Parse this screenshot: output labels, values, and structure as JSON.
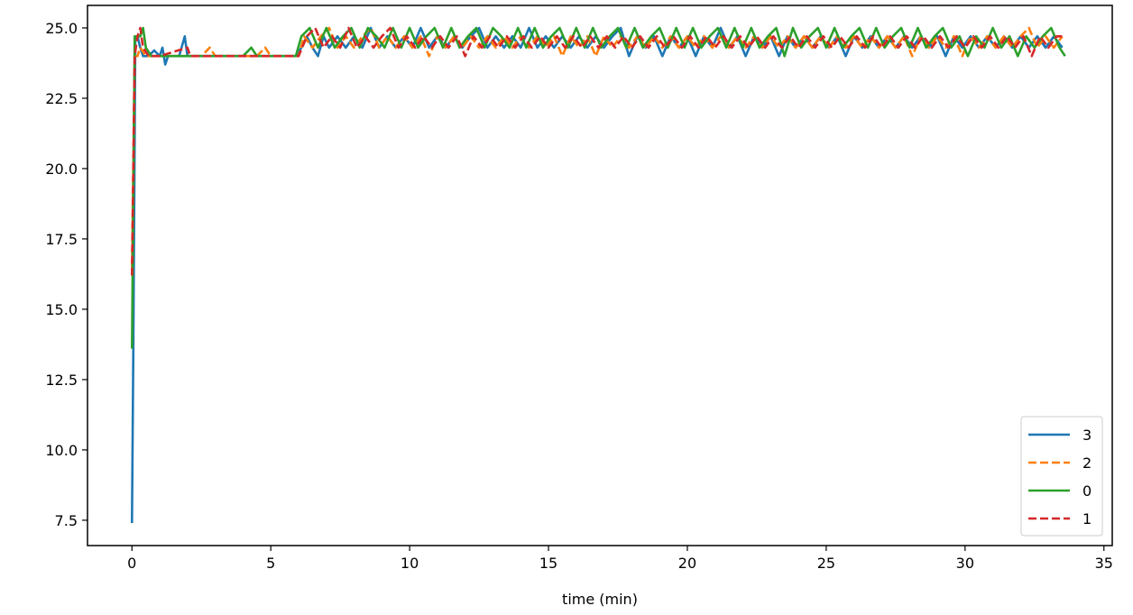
{
  "chart_data": {
    "type": "line",
    "title": "",
    "xlabel": "time (min)",
    "ylabel": "",
    "xlim": [
      -1.6,
      35.3
    ],
    "ylim": [
      6.6,
      25.8
    ],
    "xticks": [
      0,
      5,
      10,
      15,
      20,
      25,
      30,
      35
    ],
    "xtick_labels": [
      "0",
      "5",
      "10",
      "15",
      "20",
      "25",
      "30",
      "35"
    ],
    "yticks": [
      7.5,
      10.0,
      12.5,
      15.0,
      17.5,
      20.0,
      22.5,
      25.0
    ],
    "ytick_labels": [
      "7.5",
      "10.0",
      "12.5",
      "15.0",
      "17.5",
      "20.0",
      "22.5",
      "25.0"
    ],
    "grid": false,
    "legend_position": "lower-right",
    "series": [
      {
        "name": "3",
        "color": "#1f77b4",
        "dash": "solid",
        "x": [
          0.0,
          0.05,
          0.12,
          0.2,
          0.3,
          0.4,
          0.6,
          0.8,
          1.0,
          1.1,
          1.2,
          1.3,
          1.5,
          1.7,
          1.9,
          2.0,
          2.2,
          3.0,
          4.0,
          5.0,
          5.9,
          6.1,
          6.3,
          6.5,
          6.7,
          6.9,
          7.1,
          7.4,
          7.7,
          8.0,
          8.3,
          8.6,
          8.9,
          9.2,
          9.5,
          9.8,
          10.1,
          10.4,
          10.7,
          11.0,
          11.3,
          11.6,
          11.9,
          12.2,
          12.5,
          12.8,
          13.1,
          13.4,
          13.7,
          14.0,
          14.3,
          14.6,
          14.9,
          15.2,
          15.5,
          15.8,
          16.1,
          16.4,
          16.7,
          17.0,
          17.3,
          17.6,
          17.9,
          18.2,
          18.5,
          18.8,
          19.1,
          19.4,
          19.7,
          20.0,
          20.3,
          20.6,
          20.9,
          21.2,
          21.5,
          21.8,
          22.1,
          22.4,
          22.7,
          23.0,
          23.3,
          23.6,
          23.9,
          24.2,
          24.5,
          24.8,
          25.1,
          25.4,
          25.7,
          26.0,
          26.3,
          26.6,
          26.9,
          27.2,
          27.5,
          27.8,
          28.1,
          28.4,
          28.7,
          29.0,
          29.3,
          29.6,
          29.9,
          30.2,
          30.5,
          30.8,
          31.1,
          31.4,
          31.7,
          32.0,
          32.3,
          32.6,
          32.9,
          33.2,
          33.5
        ],
        "y": [
          7.4,
          13.6,
          24.7,
          24.7,
          24.3,
          24.0,
          24.0,
          24.2,
          24.0,
          24.3,
          23.7,
          24.0,
          24.0,
          24.0,
          24.7,
          24.0,
          24.0,
          24.0,
          24.0,
          24.0,
          24.0,
          24.3,
          24.7,
          24.3,
          24.0,
          24.7,
          24.3,
          24.7,
          24.3,
          24.7,
          24.3,
          25.0,
          24.3,
          24.7,
          24.3,
          24.7,
          24.3,
          25.0,
          24.3,
          24.7,
          24.3,
          24.7,
          24.3,
          24.7,
          25.0,
          24.3,
          24.7,
          24.3,
          24.7,
          24.3,
          25.0,
          24.3,
          24.7,
          24.3,
          24.7,
          24.3,
          24.7,
          24.3,
          24.7,
          24.3,
          24.7,
          25.0,
          24.0,
          24.7,
          24.3,
          24.7,
          24.0,
          24.7,
          24.3,
          24.7,
          24.0,
          24.7,
          24.3,
          25.0,
          24.3,
          24.7,
          24.0,
          24.7,
          24.3,
          24.7,
          24.0,
          24.7,
          24.3,
          24.7,
          24.3,
          24.7,
          24.3,
          24.7,
          24.0,
          24.7,
          24.3,
          24.7,
          24.3,
          24.7,
          24.3,
          24.7,
          24.3,
          24.7,
          24.3,
          24.7,
          24.0,
          24.7,
          24.3,
          24.7,
          24.3,
          24.7,
          24.3,
          24.7,
          24.3,
          24.7,
          24.3,
          24.7,
          24.3,
          24.7,
          24.3
        ]
      },
      {
        "name": "2",
        "color": "#ff7f0e",
        "dash": "dashed",
        "x": [
          0.0,
          0.1,
          0.2,
          0.3,
          0.5,
          1.0,
          1.5,
          2.0,
          2.5,
          2.8,
          3.0,
          3.5,
          4.0,
          4.5,
          4.8,
          5.0,
          5.5,
          6.0,
          6.2,
          6.5,
          6.8,
          7.1,
          7.4,
          7.7,
          8.0,
          8.3,
          8.6,
          8.9,
          9.2,
          9.5,
          9.8,
          10.1,
          10.4,
          10.7,
          11.0,
          11.3,
          11.6,
          11.9,
          12.2,
          12.5,
          12.8,
          13.1,
          13.4,
          13.7,
          14.0,
          14.3,
          14.6,
          14.9,
          15.2,
          15.5,
          15.8,
          16.1,
          16.4,
          16.7,
          17.0,
          17.3,
          17.6,
          17.9,
          18.2,
          18.5,
          18.8,
          19.1,
          19.4,
          19.7,
          20.0,
          20.3,
          20.6,
          20.9,
          21.2,
          21.5,
          21.8,
          22.1,
          22.4,
          22.7,
          23.0,
          23.3,
          23.6,
          23.9,
          24.2,
          24.5,
          24.8,
          25.1,
          25.4,
          25.7,
          26.0,
          26.3,
          26.6,
          26.9,
          27.2,
          27.5,
          27.8,
          28.1,
          28.4,
          28.7,
          29.0,
          29.3,
          29.6,
          29.9,
          30.2,
          30.5,
          30.8,
          31.1,
          31.4,
          31.7,
          32.0,
          32.3,
          32.6,
          32.9,
          33.2,
          33.5
        ],
        "y": [
          16.5,
          24.0,
          24.0,
          24.3,
          24.0,
          24.0,
          24.0,
          24.0,
          24.0,
          24.3,
          24.0,
          24.0,
          24.0,
          24.0,
          24.3,
          24.0,
          24.0,
          24.0,
          24.7,
          24.3,
          24.7,
          25.0,
          24.3,
          24.7,
          24.3,
          24.7,
          25.0,
          24.3,
          24.7,
          24.3,
          24.7,
          24.3,
          24.7,
          24.0,
          24.7,
          24.3,
          24.7,
          24.3,
          24.7,
          24.3,
          24.7,
          24.3,
          24.7,
          24.3,
          24.7,
          24.3,
          24.7,
          24.3,
          24.7,
          24.0,
          24.7,
          24.3,
          24.7,
          24.0,
          24.7,
          24.3,
          24.7,
          24.3,
          24.7,
          24.3,
          24.7,
          24.3,
          24.7,
          24.3,
          24.7,
          24.3,
          24.7,
          24.3,
          24.7,
          24.3,
          24.7,
          24.3,
          24.7,
          24.3,
          24.7,
          24.3,
          24.7,
          24.3,
          24.7,
          24.3,
          24.7,
          24.3,
          24.7,
          24.3,
          24.7,
          24.3,
          24.7,
          24.3,
          24.7,
          24.3,
          24.7,
          24.0,
          24.7,
          24.3,
          24.7,
          24.3,
          24.7,
          24.0,
          24.7,
          24.3,
          24.7,
          24.3,
          24.7,
          24.3,
          24.7,
          25.0,
          24.3,
          24.7,
          24.3,
          24.7
        ]
      },
      {
        "name": "0",
        "color": "#2ca02c",
        "dash": "solid",
        "x": [
          0.0,
          0.1,
          0.15,
          0.3,
          0.4,
          0.5,
          0.7,
          1.0,
          1.5,
          2.0,
          3.0,
          4.0,
          4.3,
          4.5,
          5.0,
          5.9,
          6.1,
          6.4,
          6.7,
          7.0,
          7.3,
          7.6,
          7.9,
          8.2,
          8.5,
          8.8,
          9.1,
          9.4,
          9.7,
          10.0,
          10.3,
          10.6,
          10.9,
          11.2,
          11.5,
          11.8,
          12.1,
          12.4,
          12.7,
          13.0,
          13.3,
          13.6,
          13.9,
          14.2,
          14.5,
          14.8,
          15.1,
          15.4,
          15.7,
          16.0,
          16.3,
          16.6,
          16.9,
          17.2,
          17.5,
          17.8,
          18.1,
          18.4,
          18.7,
          19.0,
          19.3,
          19.6,
          19.9,
          20.2,
          20.5,
          20.8,
          21.1,
          21.4,
          21.7,
          22.0,
          22.3,
          22.6,
          22.9,
          23.2,
          23.5,
          23.8,
          24.1,
          24.4,
          24.7,
          25.0,
          25.3,
          25.6,
          25.9,
          26.2,
          26.5,
          26.8,
          27.1,
          27.4,
          27.7,
          28.0,
          28.3,
          28.6,
          28.9,
          29.2,
          29.5,
          29.8,
          30.1,
          30.4,
          30.7,
          31.0,
          31.3,
          31.6,
          31.9,
          32.2,
          32.5,
          32.8,
          33.1,
          33.4,
          33.6
        ],
        "y": [
          13.6,
          24.7,
          24.7,
          24.7,
          25.0,
          24.3,
          24.0,
          24.0,
          24.0,
          24.0,
          24.0,
          24.0,
          24.3,
          24.0,
          24.0,
          24.0,
          24.7,
          25.0,
          24.3,
          25.0,
          24.3,
          24.7,
          25.0,
          24.3,
          25.0,
          24.7,
          24.3,
          25.0,
          24.3,
          25.0,
          24.3,
          24.7,
          25.0,
          24.3,
          25.0,
          24.3,
          24.7,
          25.0,
          24.3,
          25.0,
          24.7,
          24.3,
          25.0,
          24.3,
          25.0,
          24.3,
          24.7,
          25.0,
          24.3,
          25.0,
          24.3,
          25.0,
          24.3,
          24.7,
          25.0,
          24.3,
          25.0,
          24.3,
          24.7,
          25.0,
          24.3,
          25.0,
          24.3,
          25.0,
          24.3,
          24.7,
          25.0,
          24.3,
          25.0,
          24.3,
          25.0,
          24.3,
          24.7,
          25.0,
          24.0,
          25.0,
          24.3,
          24.7,
          25.0,
          24.3,
          25.0,
          24.3,
          24.7,
          25.0,
          24.3,
          25.0,
          24.3,
          24.7,
          25.0,
          24.3,
          25.0,
          24.3,
          24.7,
          25.0,
          24.3,
          24.7,
          24.0,
          24.7,
          24.3,
          25.0,
          24.3,
          24.7,
          24.0,
          24.7,
          24.3,
          24.7,
          25.0,
          24.3,
          24.0
        ]
      },
      {
        "name": "1",
        "color": "#d62728",
        "dash": "dashed",
        "x": [
          0.0,
          0.05,
          0.1,
          0.2,
          0.3,
          0.4,
          0.6,
          1.0,
          2.0,
          2.1,
          2.3,
          3.0,
          4.0,
          5.0,
          6.0,
          6.3,
          6.6,
          6.9,
          7.2,
          7.5,
          7.8,
          8.1,
          8.4,
          8.7,
          9.0,
          9.3,
          9.6,
          9.9,
          10.2,
          10.5,
          10.8,
          11.1,
          11.4,
          11.7,
          12.0,
          12.3,
          12.6,
          12.9,
          13.2,
          13.5,
          13.8,
          14.1,
          14.4,
          14.7,
          15.0,
          15.3,
          15.6,
          15.9,
          16.2,
          16.5,
          16.8,
          17.1,
          17.4,
          17.7,
          18.0,
          18.3,
          18.6,
          18.9,
          19.2,
          19.5,
          19.8,
          20.1,
          20.4,
          20.7,
          21.0,
          21.3,
          21.6,
          21.9,
          22.2,
          22.5,
          22.8,
          23.1,
          23.4,
          23.7,
          24.0,
          24.3,
          24.6,
          24.9,
          25.2,
          25.5,
          25.8,
          26.1,
          26.4,
          26.7,
          27.0,
          27.3,
          27.6,
          27.9,
          28.2,
          28.5,
          28.8,
          29.1,
          29.4,
          29.7,
          30.0,
          30.3,
          30.6,
          30.9,
          31.2,
          31.5,
          31.8,
          32.1,
          32.4,
          32.7,
          33.0,
          33.3,
          33.6
        ],
        "y": [
          16.2,
          20.0,
          24.0,
          24.7,
          25.0,
          24.3,
          24.0,
          24.0,
          24.3,
          24.0,
          24.0,
          24.0,
          24.0,
          24.0,
          24.0,
          24.7,
          25.0,
          24.3,
          24.7,
          24.3,
          25.0,
          24.3,
          24.7,
          24.3,
          24.7,
          25.0,
          24.3,
          24.7,
          24.3,
          24.7,
          24.3,
          24.7,
          24.3,
          24.7,
          24.0,
          24.7,
          24.3,
          24.7,
          24.3,
          24.7,
          24.3,
          24.7,
          24.3,
          24.7,
          24.3,
          24.7,
          24.3,
          24.7,
          24.3,
          24.7,
          24.3,
          24.7,
          24.3,
          24.7,
          24.3,
          24.7,
          24.3,
          24.7,
          24.3,
          24.7,
          24.3,
          24.7,
          24.3,
          24.7,
          24.3,
          24.7,
          24.3,
          24.7,
          24.3,
          24.7,
          24.3,
          24.7,
          24.3,
          24.7,
          24.3,
          24.7,
          24.3,
          24.7,
          24.3,
          24.7,
          24.3,
          24.7,
          24.3,
          24.7,
          24.3,
          24.7,
          24.3,
          24.7,
          24.3,
          24.7,
          24.3,
          24.7,
          24.3,
          24.7,
          24.3,
          24.7,
          24.3,
          24.7,
          24.3,
          24.7,
          24.3,
          24.7,
          24.0,
          24.7,
          24.3,
          24.7,
          24.7
        ]
      }
    ]
  }
}
